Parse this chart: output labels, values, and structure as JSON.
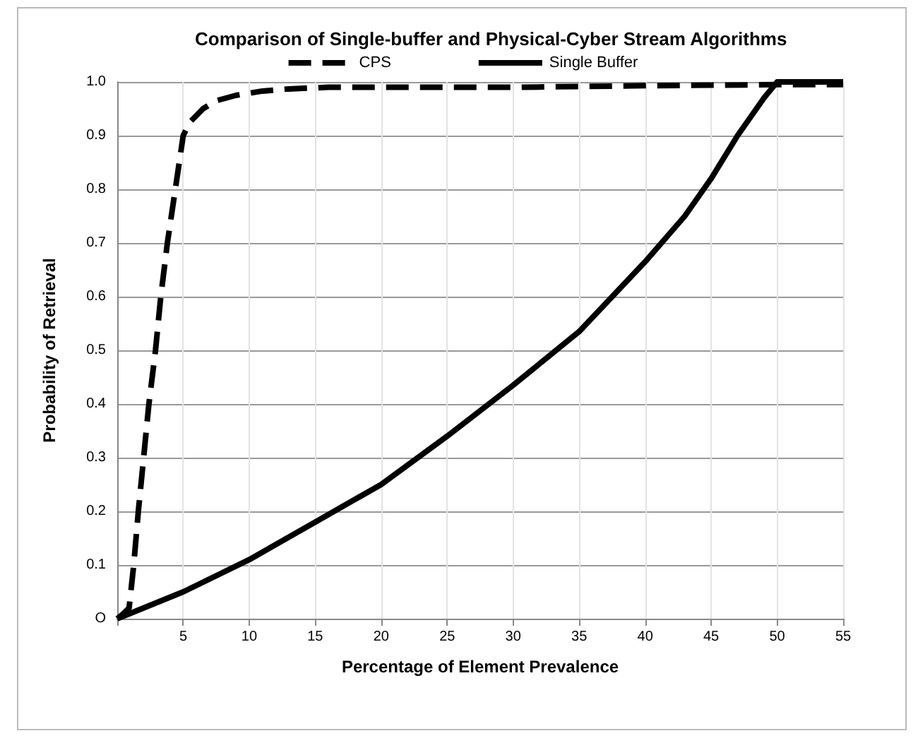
{
  "chart_data": {
    "type": "line",
    "title": "Comparison of Single-buffer and Physical-Cyber Stream Algorithms",
    "xlabel": "Percentage of Element Prevalence",
    "ylabel": "Probability of Retrieval",
    "xlim": [
      0,
      55
    ],
    "xticks": [
      {
        "value": 0,
        "label": null
      },
      5,
      10,
      15,
      20,
      25,
      30,
      35,
      40,
      45,
      50,
      55
    ],
    "ylim": [
      0,
      1
    ],
    "yticks": [
      {
        "value": 0,
        "label": "O"
      },
      0.1,
      0.2,
      0.3,
      0.4,
      0.5,
      0.6,
      0.7,
      0.8,
      0.9,
      {
        "value": 1,
        "label": "1.0"
      }
    ],
    "grid": true,
    "legend": "top",
    "marker": "none",
    "series": [
      {
        "name": "CPS",
        "color": "#000000",
        "line_style": "dashed",
        "x": [
          0,
          0.5,
          0.9,
          1.25,
          1.6,
          2,
          2.4,
          2.9,
          3.3,
          3.8,
          4.4,
          5,
          5.5,
          6.5,
          7.5,
          9,
          11,
          13,
          16,
          20,
          30,
          40,
          50,
          55
        ],
        "values": [
          0,
          0.01,
          0.02,
          0.1,
          0.2,
          0.3,
          0.4,
          0.5,
          0.6,
          0.7,
          0.8,
          0.9,
          0.925,
          0.95,
          0.965,
          0.975,
          0.983,
          0.987,
          0.99,
          0.99,
          0.99,
          0.993,
          0.995,
          0.995
        ]
      },
      {
        "name": "Single Buffer",
        "color": "#000000",
        "line_style": "solid",
        "x": [
          0,
          5,
          10,
          15,
          20,
          25,
          30,
          35,
          40,
          43,
          45,
          47,
          49,
          50,
          55
        ],
        "values": [
          0,
          0.05,
          0.11,
          0.18,
          0.25,
          0.34,
          0.435,
          0.535,
          0.665,
          0.75,
          0.82,
          0.9,
          0.97,
          1,
          1
        ]
      }
    ]
  }
}
